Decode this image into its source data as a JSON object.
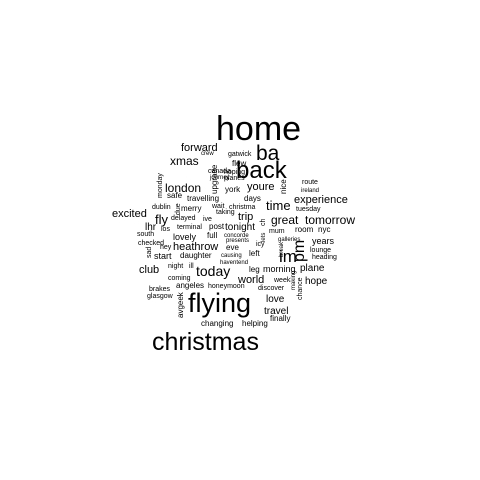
{
  "colors": {
    "background": "#ffffff",
    "text": "#000000"
  },
  "words": [
    {
      "text": "home"
    },
    {
      "text": "ba"
    },
    {
      "text": "back"
    },
    {
      "text": "flying"
    },
    {
      "text": "christmas"
    },
    {
      "text": "forward"
    },
    {
      "text": "xmas"
    },
    {
      "text": "london"
    },
    {
      "text": "excited"
    },
    {
      "text": "time"
    },
    {
      "text": "great"
    },
    {
      "text": "tomorrow"
    },
    {
      "text": "experience"
    },
    {
      "text": "im"
    },
    {
      "text": "pm"
    },
    {
      "text": "today"
    },
    {
      "text": "heathrow"
    },
    {
      "text": "club"
    },
    {
      "text": "fly"
    },
    {
      "text": "trip"
    },
    {
      "text": "youre"
    },
    {
      "text": "world"
    },
    {
      "text": "love"
    },
    {
      "text": "travel"
    },
    {
      "text": "morning"
    },
    {
      "text": "plane"
    },
    {
      "text": "hope"
    },
    {
      "text": "years"
    },
    {
      "text": "tonight"
    },
    {
      "text": "lovely"
    },
    {
      "text": "start"
    },
    {
      "text": "lhr"
    },
    {
      "text": "york"
    },
    {
      "text": "days"
    },
    {
      "text": "crew"
    },
    {
      "text": "gatwick"
    },
    {
      "text": "flew"
    },
    {
      "text": "hoping"
    },
    {
      "text": "planes"
    },
    {
      "text": "canada"
    },
    {
      "text": "journey"
    },
    {
      "text": "upgrade"
    },
    {
      "text": "nice"
    },
    {
      "text": "route"
    },
    {
      "text": "ireland"
    },
    {
      "text": "monday"
    },
    {
      "text": "safe"
    },
    {
      "text": "travelling"
    },
    {
      "text": "dublin"
    },
    {
      "text": "merry"
    },
    {
      "text": "wait"
    },
    {
      "text": "taking"
    },
    {
      "text": "christma"
    },
    {
      "text": "tuesday"
    },
    {
      "text": "delayed"
    },
    {
      "text": "ive"
    },
    {
      "text": "due"
    },
    {
      "text": "los"
    },
    {
      "text": "terminal"
    },
    {
      "text": "post"
    },
    {
      "text": "ch"
    },
    {
      "text": "mum"
    },
    {
      "text": "room"
    },
    {
      "text": "nyc"
    },
    {
      "text": "south"
    },
    {
      "text": "full"
    },
    {
      "text": "concorde"
    },
    {
      "text": "checked"
    },
    {
      "text": "hey"
    },
    {
      "text": "presents"
    },
    {
      "text": "icy"
    },
    {
      "text": "lets"
    },
    {
      "text": "lounge"
    },
    {
      "text": "eve"
    },
    {
      "text": "galleries"
    },
    {
      "text": "daughter"
    },
    {
      "text": "left"
    },
    {
      "text": "heading"
    },
    {
      "text": "sad"
    },
    {
      "text": "causing"
    },
    {
      "text": "night"
    },
    {
      "text": "ill"
    },
    {
      "text": "haventend"
    },
    {
      "text": "leg"
    },
    {
      "text": "break"
    },
    {
      "text": "coming"
    },
    {
      "text": "week"
    },
    {
      "text": "angeles"
    },
    {
      "text": "honeymoon"
    },
    {
      "text": "discover"
    },
    {
      "text": "brakes"
    },
    {
      "text": "glasgow"
    },
    {
      "text": "avgeek"
    },
    {
      "text": "finally"
    },
    {
      "text": "changing"
    },
    {
      "text": "helping"
    },
    {
      "text": "making"
    },
    {
      "text": "chance"
    }
  ]
}
